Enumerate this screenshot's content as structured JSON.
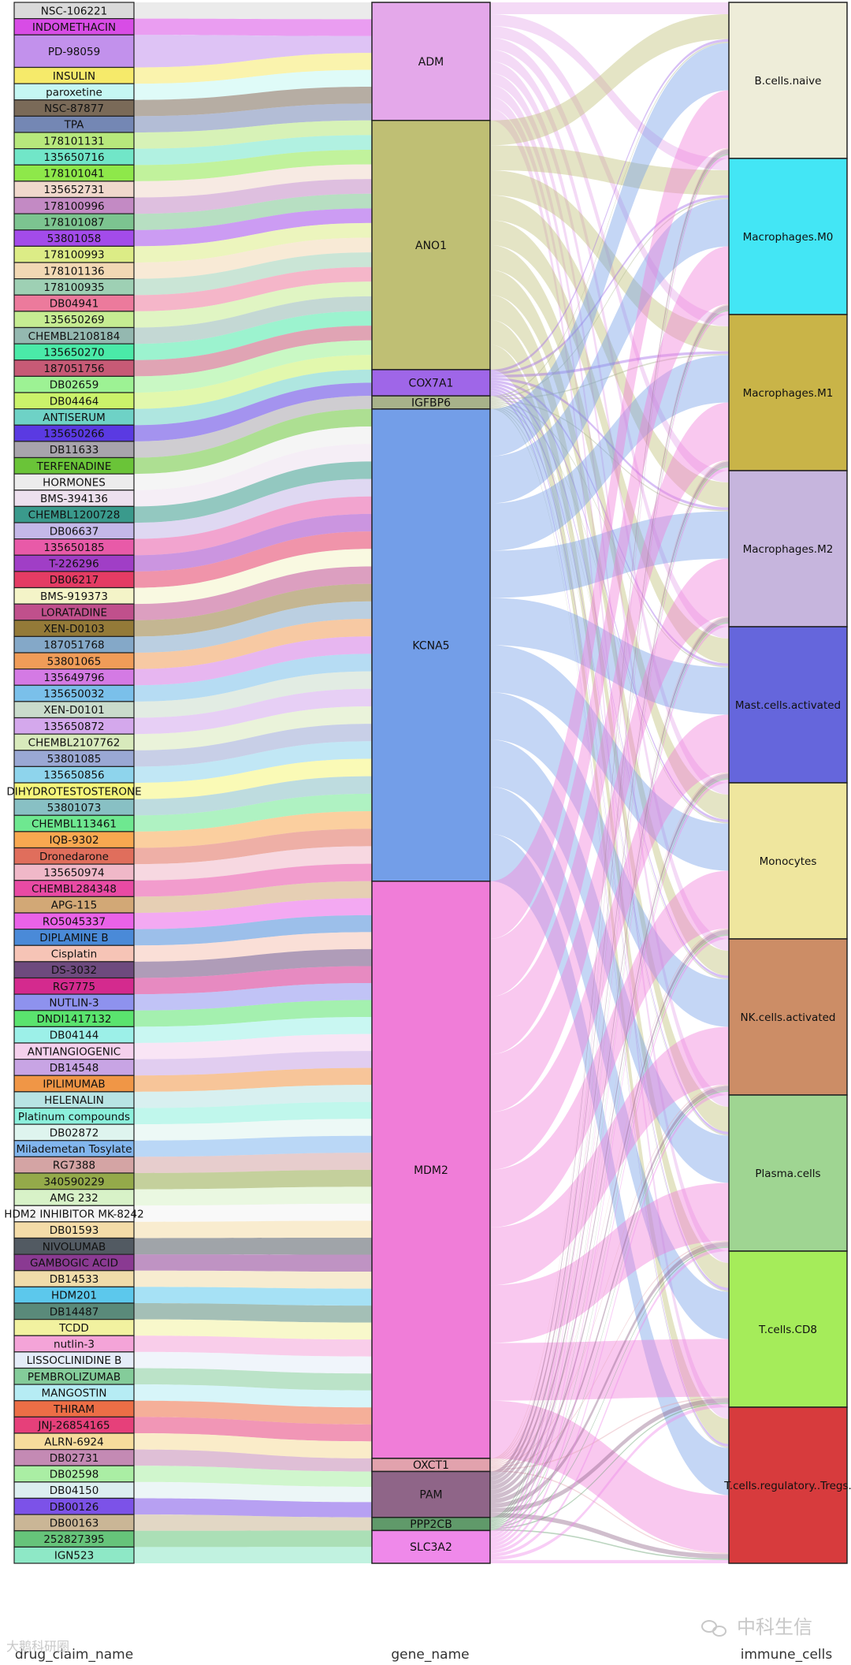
{
  "chart_data": {
    "type": "sankey",
    "axis_labels": [
      "drug_claim_name",
      "gene_name",
      "immune_cells"
    ],
    "genes": [
      {
        "name": "ADM",
        "weight": 9,
        "color": "#e4a8ea"
      },
      {
        "name": "ANO1",
        "weight": 19,
        "color": "#bfbf74"
      },
      {
        "name": "COX7A1",
        "weight": 2,
        "color": "#9f66e8"
      },
      {
        "name": "IGFBP6",
        "weight": 1,
        "color": "#a8b28a"
      },
      {
        "name": "KCNA5",
        "weight": 36,
        "color": "#739ee8"
      },
      {
        "name": "MDM2",
        "weight": 44,
        "color": "#f07dd8"
      },
      {
        "name": "OXCT1",
        "weight": 1,
        "color": "#e2a2ad"
      },
      {
        "name": "PAM",
        "weight": 3.5,
        "color": "#8f6588"
      },
      {
        "name": "PPP2CB",
        "weight": 1,
        "color": "#609a6a"
      },
      {
        "name": "SLC3A2",
        "weight": 2.5,
        "color": "#ef89ea"
      }
    ],
    "immune_cells": [
      {
        "name": "B.cells.naive",
        "color": "#eeedd9"
      },
      {
        "name": "Macrophages.M0",
        "color": "#43e6f5"
      },
      {
        "name": "Macrophages.M1",
        "color": "#c9b448"
      },
      {
        "name": "Macrophages.M2",
        "color": "#c6b5dd"
      },
      {
        "name": "Mast.cells.activated",
        "color": "#6566dc"
      },
      {
        "name": "Monocytes",
        "color": "#efe69e"
      },
      {
        "name": "NK.cells.activated",
        "color": "#cc8d66"
      },
      {
        "name": "Plasma.cells",
        "color": "#9fd592"
      },
      {
        "name": "T.cells.CD8",
        "color": "#a5ec5a"
      },
      {
        "name": "T.cells.regulatory..Tregs.",
        "color": "#d73b3d"
      }
    ],
    "drugs": [
      {
        "name": "NSC-106221",
        "color": "#dadada",
        "gene": "ADM"
      },
      {
        "name": "INDOMETHACIN",
        "color": "#d84ce6",
        "gene": "ADM"
      },
      {
        "name": "PD-98059",
        "color": "#c291ec",
        "gene": "ADM",
        "weight": 2
      },
      {
        "name": "INSULIN",
        "color": "#f6ea6a",
        "gene": "ADM"
      },
      {
        "name": "paroxetine",
        "color": "#c5f7f3",
        "gene": "ADM"
      },
      {
        "name": "NSC-87877",
        "color": "#7a6a58",
        "gene": "ADM"
      },
      {
        "name": "TPA",
        "color": "#7487b4",
        "gene": "ADM"
      },
      {
        "name": "178101131",
        "color": "#b7e87c",
        "gene": "ANO1"
      },
      {
        "name": "135650716",
        "color": "#71e6c8",
        "gene": "ANO1"
      },
      {
        "name": "178101041",
        "color": "#8ee84a",
        "gene": "ANO1"
      },
      {
        "name": "135652731",
        "color": "#f0d8cc",
        "gene": "ANO1"
      },
      {
        "name": "178100996",
        "color": "#c38ac4",
        "gene": "ANO1"
      },
      {
        "name": "178101087",
        "color": "#7cc490",
        "gene": "ANO1"
      },
      {
        "name": "53801058",
        "color": "#a34bea",
        "gene": "ANO1"
      },
      {
        "name": "178100993",
        "color": "#dcec86",
        "gene": "ANO1"
      },
      {
        "name": "178101136",
        "color": "#f2d8b4",
        "gene": "ANO1"
      },
      {
        "name": "178100935",
        "color": "#9ed0b4",
        "gene": "ANO1"
      },
      {
        "name": "DB04941",
        "color": "#ec7a9c",
        "gene": "ANO1"
      },
      {
        "name": "135650269",
        "color": "#c6ec92",
        "gene": "ANO1"
      },
      {
        "name": "CHEMBL2108184",
        "color": "#94b8b0",
        "gene": "ANO1"
      },
      {
        "name": "135650270",
        "color": "#4aeaa8",
        "gene": "ANO1"
      },
      {
        "name": "187051756",
        "color": "#c75a76",
        "gene": "ANO1"
      },
      {
        "name": "DB02659",
        "color": "#9df294",
        "gene": "ANO1"
      },
      {
        "name": "DB04464",
        "color": "#caf26a",
        "gene": "ANO1"
      },
      {
        "name": "ANTISERUM",
        "color": "#6ed2c6",
        "gene": "COX7A1"
      },
      {
        "name": "135650266",
        "color": "#5a3ae2",
        "gene": "COX7A1"
      },
      {
        "name": "DB11633",
        "color": "#a8a4ac",
        "gene": "IGFBP6"
      },
      {
        "name": "TERFENADINE",
        "color": "#6ac438",
        "gene": "KCNA5"
      },
      {
        "name": "HORMONES",
        "color": "#ececec",
        "gene": "KCNA5"
      },
      {
        "name": "BMS-394136",
        "color": "#ede0ee",
        "gene": "KCNA5"
      },
      {
        "name": "CHEMBL1200728",
        "color": "#3a9a8c",
        "gene": "KCNA5"
      },
      {
        "name": "DB06637",
        "color": "#c4b8e8",
        "gene": "KCNA5"
      },
      {
        "name": "135650185",
        "color": "#e85aa8",
        "gene": "KCNA5"
      },
      {
        "name": "T-226296",
        "color": "#a03ec6",
        "gene": "KCNA5"
      },
      {
        "name": "DB06217",
        "color": "#e43c64",
        "gene": "KCNA5"
      },
      {
        "name": "BMS-919373",
        "color": "#f4f4c8",
        "gene": "KCNA5"
      },
      {
        "name": "LORATADINE",
        "color": "#c0508c",
        "gene": "KCNA5"
      },
      {
        "name": "XEN-D0103",
        "color": "#947a38",
        "gene": "KCNA5"
      },
      {
        "name": "187051768",
        "color": "#84a8c8",
        "gene": "KCNA5"
      },
      {
        "name": "53801065",
        "color": "#f09c58",
        "gene": "KCNA5"
      },
      {
        "name": "135649796",
        "color": "#d47ae4",
        "gene": "KCNA5"
      },
      {
        "name": "135650032",
        "color": "#7ac0ea",
        "gene": "KCNA5"
      },
      {
        "name": "XEN-D0101",
        "color": "#cadccc",
        "gene": "KCNA5"
      },
      {
        "name": "135650872",
        "color": "#d4a8ec",
        "gene": "KCNA5"
      },
      {
        "name": "CHEMBL2107762",
        "color": "#d8eabc",
        "gene": "KCNA5"
      },
      {
        "name": "53801085",
        "color": "#9aa8d4",
        "gene": "KCNA5"
      },
      {
        "name": "135650856",
        "color": "#8ed4ec",
        "gene": "KCNA5"
      },
      {
        "name": "DIHYDROTESTOSTERONE",
        "color": "#f6f67a",
        "gene": "KCNA5"
      },
      {
        "name": "53801073",
        "color": "#88c0c4",
        "gene": "KCNA5"
      },
      {
        "name": "CHEMBL113461",
        "color": "#6ee890",
        "gene": "KCNA5"
      },
      {
        "name": "IQB-9302",
        "color": "#f8a850",
        "gene": "KCNA5"
      },
      {
        "name": "Dronedarone",
        "color": "#e06e5c",
        "gene": "KCNA5"
      },
      {
        "name": "135650974",
        "color": "#f0b8c8",
        "gene": "KCNA5"
      },
      {
        "name": "CHEMBL284348",
        "color": "#e84aa4",
        "gene": "KCNA5"
      },
      {
        "name": "APG-115",
        "color": "#d2a876",
        "gene": "MDM2"
      },
      {
        "name": "RO5045337",
        "color": "#ea62e8",
        "gene": "MDM2"
      },
      {
        "name": "DIPLAMINE B",
        "color": "#4a8ad8",
        "gene": "MDM2"
      },
      {
        "name": "Cisplatin",
        "color": "#f6c4b6",
        "gene": "MDM2"
      },
      {
        "name": "DS-3032",
        "color": "#6e4a7e",
        "gene": "MDM2"
      },
      {
        "name": "RG7775",
        "color": "#d42a8e",
        "gene": "MDM2"
      },
      {
        "name": "NUTLIN-3",
        "color": "#8e92ee",
        "gene": "MDM2"
      },
      {
        "name": "DNDI1417132",
        "color": "#5ae46e",
        "gene": "MDM2"
      },
      {
        "name": "DB04144",
        "color": "#9cf0e8",
        "gene": "MDM2"
      },
      {
        "name": "ANTIANGIOGENIC",
        "color": "#f4d0ec",
        "gene": "MDM2"
      },
      {
        "name": "DB14548",
        "color": "#c8a4e4",
        "gene": "MDM2"
      },
      {
        "name": "IPILIMUMAB",
        "color": "#f09646",
        "gene": "MDM2"
      },
      {
        "name": "HELENALIN",
        "color": "#b8e4e4",
        "gene": "MDM2"
      },
      {
        "name": "Platinum compounds",
        "color": "#8cf0dc",
        "gene": "MDM2"
      },
      {
        "name": "DB02872",
        "color": "#def4ee",
        "gene": "MDM2"
      },
      {
        "name": "Milademetan Tosylate",
        "color": "#82b6ee",
        "gene": "MDM2"
      },
      {
        "name": "RG7388",
        "color": "#d4a4a4",
        "gene": "MDM2"
      },
      {
        "name": "340590229",
        "color": "#94aa4a",
        "gene": "MDM2"
      },
      {
        "name": "AMG 232",
        "color": "#d8f2c8",
        "gene": "MDM2"
      },
      {
        "name": "HDM2 INHIBITOR MK-8242",
        "color": "#f4f4f4",
        "gene": "MDM2"
      },
      {
        "name": "DB01593",
        "color": "#f4dca8",
        "gene": "MDM2"
      },
      {
        "name": "NIVOLUMAB",
        "color": "#525a62",
        "gene": "MDM2"
      },
      {
        "name": "GAMBOGIC ACID",
        "color": "#8a3a92",
        "gene": "MDM2"
      },
      {
        "name": "DB14533",
        "color": "#f0dcaa",
        "gene": "MDM2"
      },
      {
        "name": "HDM201",
        "color": "#5cc8ec",
        "gene": "MDM2"
      },
      {
        "name": "DB14487",
        "color": "#5a8a7a",
        "gene": "MDM2"
      },
      {
        "name": "TCDD",
        "color": "#f2f2a0",
        "gene": "MDM2"
      },
      {
        "name": "nutlin-3",
        "color": "#f4a4d8",
        "gene": "MDM2"
      },
      {
        "name": "LISSOCLINIDINE B",
        "color": "#e4ecf8",
        "gene": "MDM2"
      },
      {
        "name": "PEMBROLIZUMAB",
        "color": "#84cc9a",
        "gene": "MDM2"
      },
      {
        "name": "MANGOSTIN",
        "color": "#b6ecf4",
        "gene": "MDM2"
      },
      {
        "name": "THIRAM",
        "color": "#ec6e46",
        "gene": "MDM2"
      },
      {
        "name": "JNJ-26854165",
        "color": "#e6407a",
        "gene": "MDM2"
      },
      {
        "name": "ALRN-6924",
        "color": "#f6dc9c",
        "gene": "MDM2"
      },
      {
        "name": "DB02731",
        "color": "#c48ab4",
        "gene": "OXCT1"
      },
      {
        "name": "DB02598",
        "color": "#aaeea4",
        "gene": "PAM"
      },
      {
        "name": "DB04150",
        "color": "#dceef0",
        "gene": "PAM"
      },
      {
        "name": "DB00126",
        "color": "#7c52e8",
        "gene": "PAM"
      },
      {
        "name": "DB00163",
        "color": "#cab696",
        "gene": "PPP2CB"
      },
      {
        "name": "252827395",
        "color": "#66c47a",
        "gene": "SLC3A2"
      },
      {
        "name": "IGN523",
        "color": "#8ee8c6",
        "gene": "SLC3A2"
      }
    ]
  },
  "watermark": {
    "left_text": "大鹅科研圈",
    "right_text": "中科生信"
  }
}
